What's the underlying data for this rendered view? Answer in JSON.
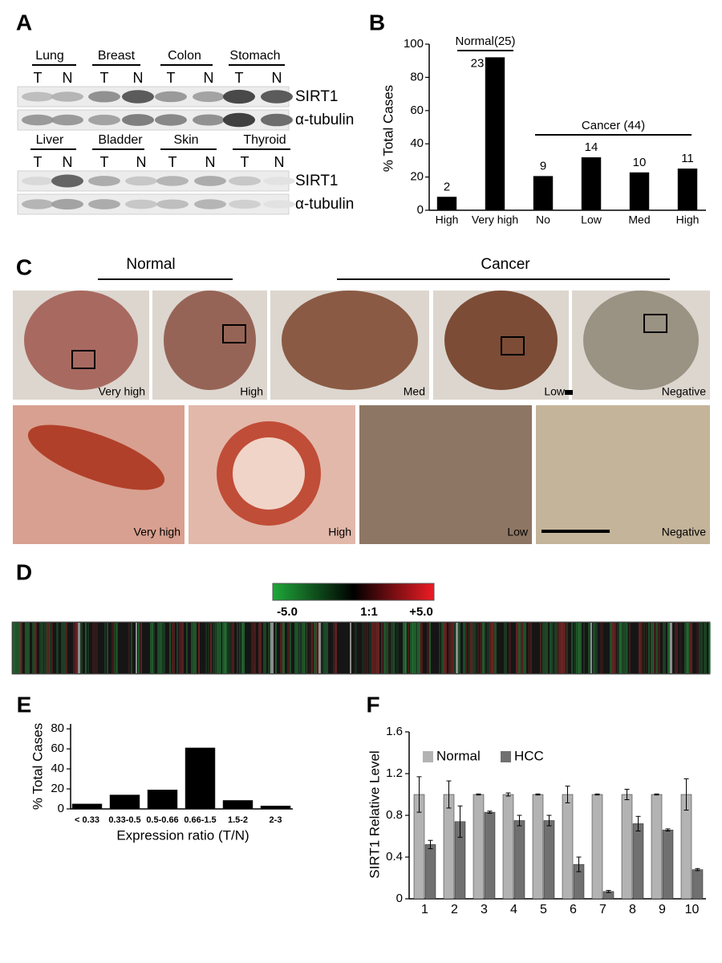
{
  "panel_a": {
    "panel": "A",
    "rows": [
      {
        "tissues": [
          "Lung",
          "Breast",
          "Colon",
          "Stomach"
        ],
        "lanes": [
          "T",
          "N",
          "T",
          "N",
          "T",
          "N",
          "T",
          "N"
        ],
        "blots": [
          "SIRT1",
          "α-tubulin"
        ]
      },
      {
        "tissues": [
          "Liver",
          "Bladder",
          "Skin",
          "Thyroid"
        ],
        "lanes": [
          "T",
          "N",
          "T",
          "N",
          "T",
          "N",
          "T",
          "N"
        ],
        "blots": [
          "SIRT1",
          "α-tubulin"
        ]
      }
    ]
  },
  "panel_c": {
    "panel": "C",
    "groups": [
      "Normal",
      "Cancer"
    ],
    "top": [
      "Very high",
      "High",
      "Med",
      "Low",
      "Negative"
    ],
    "bottom": [
      "Very high",
      "High",
      "Low",
      "Negative"
    ]
  },
  "panel_d": {
    "panel": "D",
    "scale": [
      "-5.0",
      "1:1",
      "+5.0"
    ]
  },
  "chart_data": [
    {
      "type": "bar",
      "panel": "B",
      "ylabel": "% Total Cases",
      "categories": [
        "High",
        "Very high",
        "No",
        "Low",
        "Med",
        "High"
      ],
      "values": [
        8,
        92,
        20.5,
        31.8,
        22.7,
        25
      ],
      "counts": [
        2,
        23,
        9,
        14,
        10,
        11
      ],
      "groups": [
        {
          "label": "Normal(25)"
        },
        {
          "label": "Cancer (44)"
        }
      ],
      "color": "#000000",
      "ylim": [
        0,
        100
      ],
      "yticks": [
        0,
        20,
        40,
        60,
        80,
        100
      ]
    },
    {
      "type": "bar",
      "panel": "E",
      "xlabel": "Expression ratio (T/N)",
      "ylabel": "% Total Cases",
      "categories": [
        "< 0.33",
        "0.33-0.5",
        "0.5-0.66",
        "0.66-1.5",
        "1.5-2",
        "2-3"
      ],
      "values": [
        5,
        14,
        19,
        61,
        8.5,
        3
      ],
      "color": "#000000",
      "ylim": [
        0,
        85
      ],
      "yticks": [
        0,
        20,
        40,
        60,
        80
      ]
    },
    {
      "type": "bar",
      "panel": "F",
      "ylabel": "SIRT1 Relative Level",
      "categories": [
        "1",
        "2",
        "3",
        "4",
        "5",
        "6",
        "7",
        "8",
        "9",
        "10"
      ],
      "series": [
        {
          "name": "Normal",
          "color": "#b3b3b3",
          "values": [
            1,
            1,
            1,
            1,
            1,
            1,
            1,
            1,
            1,
            1
          ],
          "errors": [
            0.17,
            0.13,
            0.005,
            0.015,
            0.005,
            0.08,
            0.005,
            0.05,
            0.005,
            0.15
          ]
        },
        {
          "name": "HCC",
          "color": "#707070",
          "values": [
            0.52,
            0.74,
            0.83,
            0.75,
            0.75,
            0.33,
            0.07,
            0.72,
            0.66,
            0.28
          ],
          "errors": [
            0.04,
            0.15,
            0.01,
            0.05,
            0.05,
            0.07,
            0.01,
            0.07,
            0.01,
            0.01
          ]
        }
      ],
      "legend": "top-left",
      "ylim": [
        0,
        1.6
      ],
      "yticks": [
        0,
        0.4,
        0.8,
        1.2,
        1.6
      ]
    }
  ]
}
